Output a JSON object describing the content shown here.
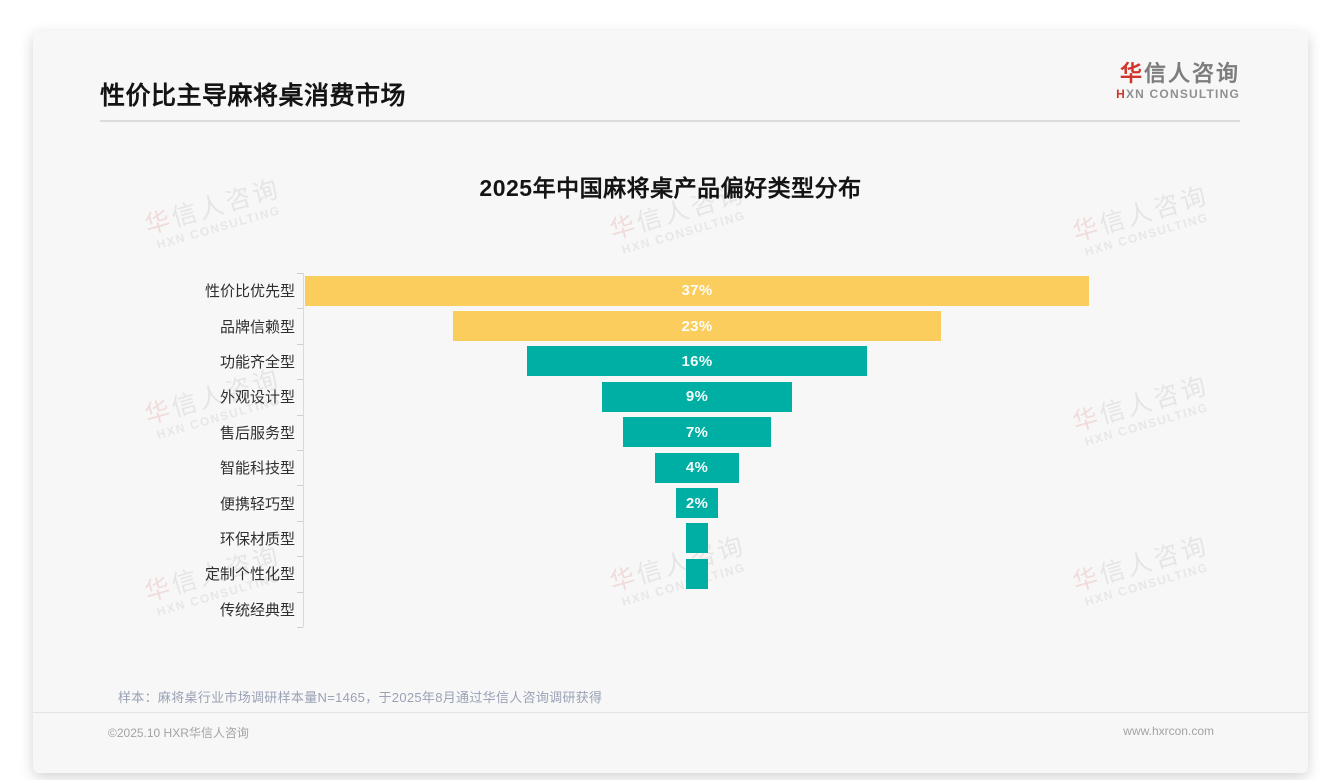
{
  "header": {
    "title": "性价比主导麻将桌消费市场"
  },
  "logo": {
    "cn_accent": "华",
    "cn_rest": "信人咨询",
    "en_accent": "H",
    "en_rest": "XN CONSULTING"
  },
  "watermark": {
    "cn_accent": "华",
    "cn_rest": "信人咨询",
    "en": "HXN CONSULTING"
  },
  "note": {
    "text": "样本：麻将桌行业市场调研样本量N=1465，于2025年8月通过华信人咨询调研获得"
  },
  "footer": {
    "copyright": "©2025.10 HXR华信人咨询",
    "website": "www.hxrcon.com"
  },
  "chart_data": {
    "type": "bar",
    "subtype": "centered-funnel-horizontal",
    "title": "2025年中国麻将桌产品偏好类型分布",
    "categories": [
      "性价比优先型",
      "品牌信赖型",
      "功能齐全型",
      "外观设计型",
      "售后服务型",
      "智能科技型",
      "便携轻巧型",
      "环保材质型",
      "定制个性化型",
      "传统经典型"
    ],
    "values": [
      37,
      23,
      16,
      9,
      7,
      4,
      2,
      1,
      1,
      0
    ],
    "unit": "%",
    "label_format": "{value}%",
    "data_labels_shown_for_min_value": 2,
    "xlim": [
      0,
      37
    ],
    "grid": "off",
    "legend": "none",
    "colors": {
      "bars_top2": "#FACD5C",
      "bars_rest": "#00AFA4",
      "value_label": "#ffffff"
    }
  }
}
